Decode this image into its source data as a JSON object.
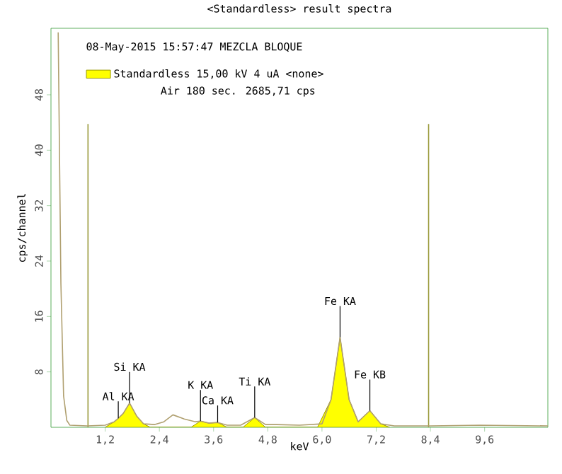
{
  "chart_data": {
    "type": "line",
    "title": "<Standardless> result spectra",
    "subtitle": "08-May-2015 15:57:47 MEZCLA BLOQUE",
    "xlabel": "keV",
    "ylabel": "cps/channel",
    "xlim": [
      0,
      11
    ],
    "ylim": [
      0,
      57.6
    ],
    "xticks": [
      {
        "value": 1.2,
        "label": "1,2"
      },
      {
        "value": 2.4,
        "label": "2,4"
      },
      {
        "value": 3.6,
        "label": "3,6"
      },
      {
        "value": 4.8,
        "label": "4,8"
      },
      {
        "value": 6.0,
        "label": "6,0"
      },
      {
        "value": 7.2,
        "label": "7,2"
      },
      {
        "value": 8.4,
        "label": "8,4"
      },
      {
        "value": 9.6,
        "label": "9,6"
      }
    ],
    "yticks": [
      8,
      16,
      24,
      32,
      40,
      48
    ],
    "series": [
      {
        "color": "#b0a070",
        "x": [
          0.16,
          0.22,
          0.28,
          0.35,
          0.42,
          0.8,
          1.2,
          1.4,
          1.49,
          1.6,
          1.74,
          1.9,
          2.05,
          2.3,
          2.5,
          2.7,
          2.95,
          3.2,
          3.31,
          3.5,
          3.69,
          3.9,
          4.2,
          4.51,
          4.75,
          5.0,
          5.5,
          6.0,
          6.2,
          6.4,
          6.6,
          6.8,
          7.06,
          7.3,
          7.6,
          8.4,
          9.5,
          11.0
        ],
        "values": [
          57,
          20.8,
          4.5,
          1.0,
          0.3,
          0.2,
          0.3,
          0.8,
          1.3,
          2.0,
          3.5,
          1.6,
          0.5,
          0.4,
          0.8,
          1.8,
          1.2,
          0.8,
          0.9,
          0.6,
          0.7,
          0.3,
          0.3,
          1.4,
          0.4,
          0.4,
          0.3,
          0.5,
          4.0,
          13.0,
          4.0,
          0.8,
          2.4,
          0.5,
          0.2,
          0.2,
          0.3,
          0.2
        ]
      },
      {
        "type": "area",
        "name": "Standardless 15,00 kV    4 uA <none>",
        "color": "#ffff00",
        "x": [
          1.2,
          1.4,
          1.49,
          1.6,
          1.74,
          1.9,
          2.05,
          2.2,
          3.1,
          3.31,
          3.5,
          3.69,
          3.9,
          4.25,
          4.51,
          4.75,
          5.9,
          6.2,
          6.4,
          6.6,
          6.8,
          7.06,
          7.3,
          7.5
        ],
        "values": [
          0,
          0.8,
          1.3,
          2.0,
          3.5,
          1.6,
          0.5,
          0,
          0,
          0.9,
          0.6,
          0.7,
          0,
          0,
          1.4,
          0,
          0,
          4.0,
          13.0,
          4.0,
          0.8,
          2.4,
          0.5,
          0
        ]
      }
    ],
    "ref_lines": [
      {
        "axis": "x",
        "value": 0.82,
        "color": "#9a9a3c"
      },
      {
        "axis": "x",
        "value": 8.36,
        "color": "#9a9a3c"
      }
    ],
    "annotations": [
      "Air  180 sec.  2685,71 cps",
      {
        "text": "Al KA",
        "x": 1.49,
        "y": 1.3
      },
      {
        "text": "Si KA",
        "x": 1.74,
        "y": 3.5
      },
      {
        "text": "K KA",
        "x": 3.31,
        "y": 0.9
      },
      {
        "text": "Ca KA",
        "x": 3.69,
        "y": 0.7
      },
      {
        "text": "Ti KA",
        "x": 4.51,
        "y": 1.4
      },
      {
        "text": "Fe KA",
        "x": 6.4,
        "y": 13.0
      },
      {
        "text": "Fe KB",
        "x": 7.06,
        "y": 2.4
      }
    ],
    "legend": "top left",
    "grid": false,
    "marker": "none",
    "line_style": "solid"
  }
}
